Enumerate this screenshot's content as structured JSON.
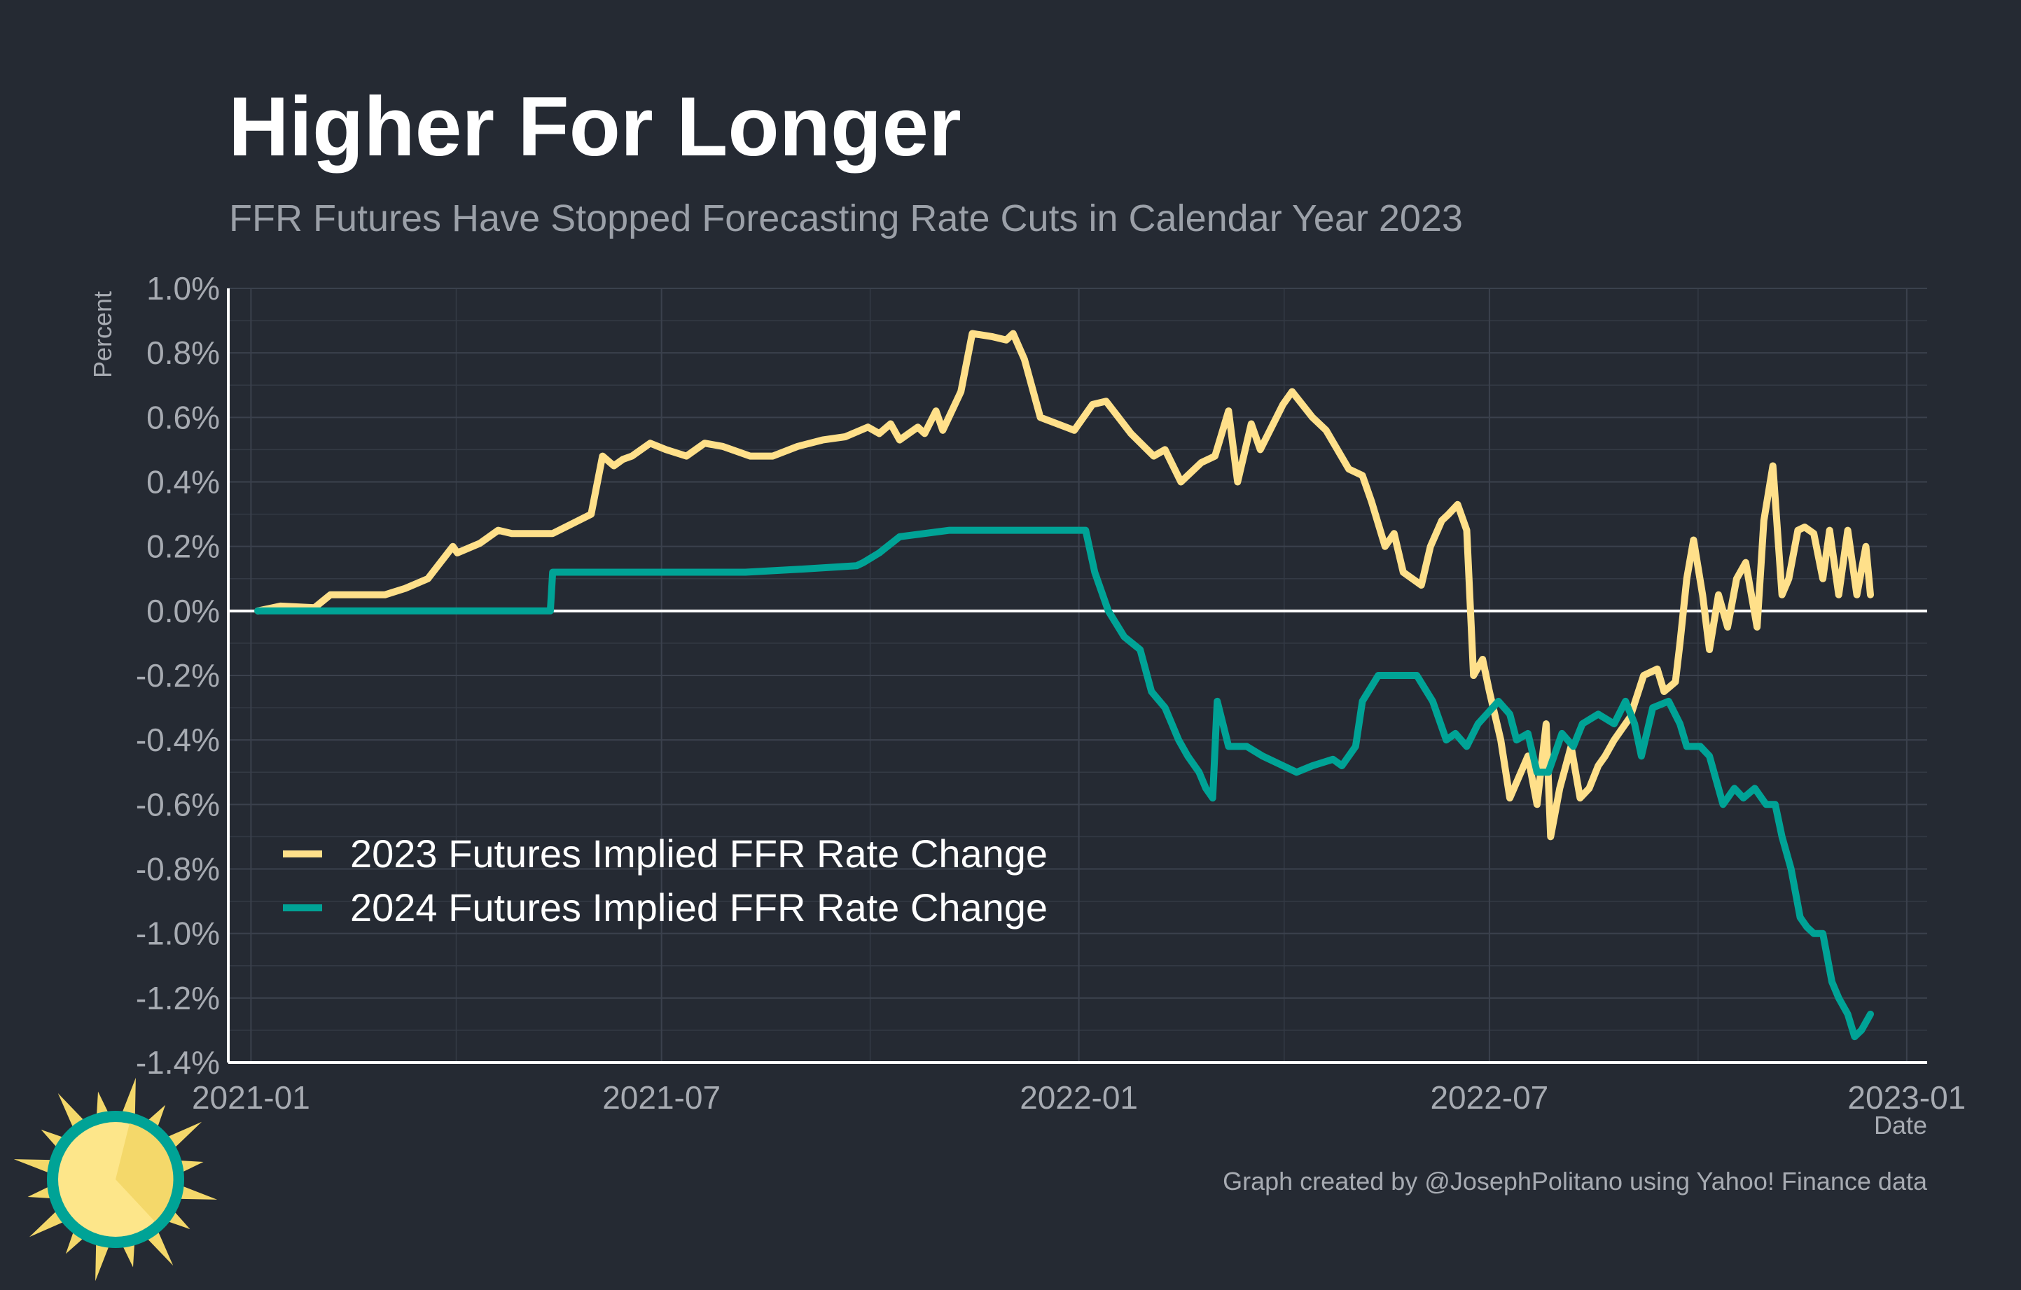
{
  "chart_data": {
    "type": "line",
    "title": "Higher For Longer",
    "subtitle": "FFR Futures Have Stopped Forecasting Rate Cuts in Calendar Year 2023",
    "xlabel": "Date",
    "ylabel": "Percent",
    "caption": "Graph created by @JosephPolitano using Yahoo! Finance data",
    "xlim": [
      "2020-12-22",
      "2023-01-10"
    ],
    "ylim": [
      -1.4,
      1.0
    ],
    "y_ticks": [
      1.0,
      0.8,
      0.6,
      0.4,
      0.2,
      0.0,
      -0.2,
      -0.4,
      -0.6,
      -0.8,
      -1.0,
      -1.2,
      -1.4
    ],
    "y_tick_labels": [
      "1.0%",
      "0.8%",
      "0.6%",
      "0.4%",
      "0.2%",
      "0.0%",
      "-0.2%",
      "-0.4%",
      "-0.6%",
      "-0.8%",
      "-1.0%",
      "-1.2%",
      "-1.4%"
    ],
    "x_ticks": [
      "2021-01-01",
      "2021-07-01",
      "2022-01-01",
      "2022-07-01",
      "2023-01-01"
    ],
    "x_tick_labels": [
      "2021-01",
      "2021-07",
      "2022-01",
      "2022-07",
      "2023-01"
    ],
    "grid": true,
    "legend_position": "bottom-left",
    "series": [
      {
        "name": "2023 Futures Implied FFR Rate Change",
        "color": "#ffe08a",
        "x": [
          "2021-01-04",
          "2021-01-14",
          "2021-01-29",
          "2021-02-05",
          "2021-03-01",
          "2021-03-10",
          "2021-03-20",
          "2021-03-31",
          "2021-04-02",
          "2021-04-12",
          "2021-04-20",
          "2021-04-26",
          "2021-05-14",
          "2021-05-31",
          "2021-06-05",
          "2021-06-10",
          "2021-06-14",
          "2021-06-18",
          "2021-06-26",
          "2021-07-03",
          "2021-07-12",
          "2021-07-20",
          "2021-07-28",
          "2021-08-09",
          "2021-08-19",
          "2021-08-30",
          "2021-09-10",
          "2021-09-20",
          "2021-09-30",
          "2021-10-05",
          "2021-10-10",
          "2021-10-14",
          "2021-10-22",
          "2021-10-25",
          "2021-10-30",
          "2021-11-02",
          "2021-11-10",
          "2021-11-15",
          "2021-11-24",
          "2021-11-30",
          "2021-12-03",
          "2021-12-08",
          "2021-12-15",
          "2021-12-30",
          "2022-01-07",
          "2022-01-13",
          "2022-01-24",
          "2022-02-03",
          "2022-02-08",
          "2022-02-15",
          "2022-02-24",
          "2022-03-02",
          "2022-03-08",
          "2022-03-12",
          "2022-03-18",
          "2022-03-22",
          "2022-04-01",
          "2022-04-05",
          "2022-04-14",
          "2022-04-20",
          "2022-04-30",
          "2022-05-06",
          "2022-05-10",
          "2022-05-16",
          "2022-05-20",
          "2022-05-24",
          "2022-06-01",
          "2022-06-05",
          "2022-06-10",
          "2022-06-13",
          "2022-06-17",
          "2022-06-21",
          "2022-06-24",
          "2022-06-28",
          "2022-07-01",
          "2022-07-06",
          "2022-07-10",
          "2022-07-18",
          "2022-07-22",
          "2022-07-26",
          "2022-07-28",
          "2022-08-01",
          "2022-08-06",
          "2022-08-10",
          "2022-08-14",
          "2022-08-18",
          "2022-08-21",
          "2022-08-25",
          "2022-09-01",
          "2022-09-07",
          "2022-09-13",
          "2022-09-16",
          "2022-09-21",
          "2022-09-23",
          "2022-09-26",
          "2022-09-29",
          "2022-10-03",
          "2022-10-06",
          "2022-10-10",
          "2022-10-14",
          "2022-10-18",
          "2022-10-22",
          "2022-10-27",
          "2022-10-30",
          "2022-11-03",
          "2022-11-07",
          "2022-11-10",
          "2022-11-14",
          "2022-11-17",
          "2022-11-21",
          "2022-11-25",
          "2022-11-28",
          "2022-12-02",
          "2022-12-06",
          "2022-12-10",
          "2022-12-14",
          "2022-12-16"
        ],
        "values": [
          0.0,
          0.015,
          0.01,
          0.05,
          0.05,
          0.07,
          0.1,
          0.2,
          0.18,
          0.21,
          0.25,
          0.24,
          0.24,
          0.3,
          0.48,
          0.45,
          0.47,
          0.48,
          0.52,
          0.5,
          0.48,
          0.52,
          0.51,
          0.48,
          0.48,
          0.51,
          0.53,
          0.54,
          0.57,
          0.55,
          0.58,
          0.53,
          0.57,
          0.55,
          0.62,
          0.56,
          0.68,
          0.86,
          0.85,
          0.84,
          0.86,
          0.78,
          0.6,
          0.56,
          0.64,
          0.65,
          0.55,
          0.48,
          0.5,
          0.4,
          0.46,
          0.48,
          0.62,
          0.4,
          0.58,
          0.5,
          0.64,
          0.68,
          0.6,
          0.56,
          0.44,
          0.42,
          0.34,
          0.2,
          0.24,
          0.12,
          0.08,
          0.2,
          0.28,
          0.3,
          0.33,
          0.25,
          -0.2,
          -0.15,
          -0.25,
          -0.4,
          -0.58,
          -0.45,
          -0.6,
          -0.35,
          -0.7,
          -0.55,
          -0.42,
          -0.58,
          -0.55,
          -0.48,
          -0.45,
          -0.4,
          -0.33,
          -0.2,
          -0.18,
          -0.25,
          -0.22,
          -0.1,
          0.1,
          0.22,
          0.05,
          -0.12,
          0.05,
          -0.05,
          0.1,
          0.15,
          -0.05,
          0.28,
          0.45,
          0.05,
          0.1,
          0.25,
          0.26,
          0.24,
          0.1,
          0.25,
          0.05,
          0.25,
          0.05,
          0.2,
          0.05
        ],
        "linewidth": 1
      },
      {
        "name": "2024 Futures Implied FFR Rate Change",
        "color": "#00a396",
        "x": [
          "2021-01-04",
          "2021-02-01",
          "2021-05-13",
          "2021-05-14",
          "2021-06-05",
          "2021-07-05",
          "2021-08-07",
          "2021-09-02",
          "2021-09-25",
          "2021-09-28",
          "2021-10-05",
          "2021-10-14",
          "2021-11-05",
          "2021-12-15",
          "2021-12-30",
          "2022-01-04",
          "2022-01-08",
          "2022-01-14",
          "2022-01-21",
          "2022-01-28",
          "2022-02-02",
          "2022-02-08",
          "2022-02-14",
          "2022-02-18",
          "2022-02-23",
          "2022-02-26",
          "2022-03-01",
          "2022-03-03",
          "2022-03-08",
          "2022-03-16",
          "2022-03-23",
          "2022-04-01",
          "2022-04-07",
          "2022-04-14",
          "2022-04-23",
          "2022-04-27",
          "2022-05-03",
          "2022-05-06",
          "2022-05-13",
          "2022-05-20",
          "2022-05-30",
          "2022-06-06",
          "2022-06-12",
          "2022-06-16",
          "2022-06-21",
          "2022-06-26",
          "2022-07-05",
          "2022-07-10",
          "2022-07-13",
          "2022-07-18",
          "2022-07-22",
          "2022-07-27",
          "2022-08-02",
          "2022-08-07",
          "2022-08-11",
          "2022-08-18",
          "2022-08-25",
          "2022-08-30",
          "2022-09-03",
          "2022-09-06",
          "2022-09-11",
          "2022-09-18",
          "2022-09-23",
          "2022-09-26",
          "2022-10-02",
          "2022-10-06",
          "2022-10-12",
          "2022-10-17",
          "2022-10-21",
          "2022-10-26",
          "2022-10-31",
          "2022-11-04",
          "2022-11-07",
          "2022-11-11",
          "2022-11-15",
          "2022-11-18",
          "2022-11-21",
          "2022-11-25",
          "2022-11-29",
          "2022-12-02",
          "2022-12-06",
          "2022-12-09",
          "2022-12-12",
          "2022-12-16"
        ],
        "values": [
          0.0,
          0.0,
          0.0,
          0.12,
          0.12,
          0.12,
          0.12,
          0.13,
          0.14,
          0.15,
          0.18,
          0.23,
          0.25,
          0.25,
          0.25,
          0.25,
          0.12,
          0.0,
          -0.08,
          -0.12,
          -0.25,
          -0.3,
          -0.4,
          -0.45,
          -0.5,
          -0.55,
          -0.58,
          -0.28,
          -0.42,
          -0.42,
          -0.45,
          -0.48,
          -0.5,
          -0.48,
          -0.46,
          -0.48,
          -0.42,
          -0.28,
          -0.2,
          -0.2,
          -0.2,
          -0.28,
          -0.4,
          -0.38,
          -0.42,
          -0.35,
          -0.28,
          -0.32,
          -0.4,
          -0.38,
          -0.5,
          -0.5,
          -0.38,
          -0.42,
          -0.35,
          -0.32,
          -0.35,
          -0.28,
          -0.35,
          -0.45,
          -0.3,
          -0.28,
          -0.35,
          -0.42,
          -0.42,
          -0.45,
          -0.6,
          -0.55,
          -0.58,
          -0.55,
          -0.6,
          -0.6,
          -0.7,
          -0.8,
          -0.95,
          -0.98,
          -1.0,
          -1.0,
          -1.15,
          -1.2,
          -1.25,
          -1.32,
          -1.3,
          -1.25
        ],
        "linewidth": 1
      }
    ]
  },
  "logo": {
    "name": "sun-logo"
  }
}
